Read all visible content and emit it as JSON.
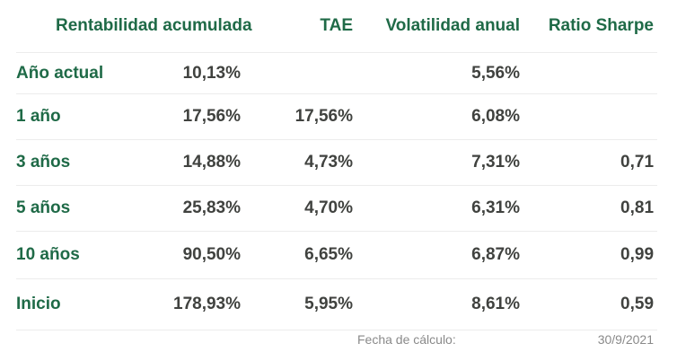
{
  "table": {
    "headers": [
      "Rentabilidad acumulada",
      "TAE",
      "Volatilidad anual",
      "Ratio Sharpe"
    ],
    "rows": [
      {
        "label": "Año actual",
        "rentabilidad": "10,13%",
        "tae": "",
        "volatilidad": "5,56%",
        "sharpe": ""
      },
      {
        "label": "1 año",
        "rentabilidad": "17,56%",
        "tae": "17,56%",
        "volatilidad": "6,08%",
        "sharpe": ""
      },
      {
        "label": "3 años",
        "rentabilidad": "14,88%",
        "tae": "4,73%",
        "volatilidad": "7,31%",
        "sharpe": "0,71"
      },
      {
        "label": "5 años",
        "rentabilidad": "25,83%",
        "tae": "4,70%",
        "volatilidad": "6,31%",
        "sharpe": "0,81"
      },
      {
        "label": "10 años",
        "rentabilidad": "90,50%",
        "tae": "6,65%",
        "volatilidad": "6,87%",
        "sharpe": "0,99"
      },
      {
        "label": "Inicio",
        "rentabilidad": "178,93%",
        "tae": "5,95%",
        "volatilidad": "8,61%",
        "sharpe": "0,59"
      }
    ]
  },
  "footer": {
    "date_label": "Fecha de cálculo:",
    "date_value": "30/9/2021"
  },
  "colors": {
    "accent": "#1f6a47",
    "text": "#40423f",
    "muted": "#8a8a8a",
    "divider": "#ececec"
  }
}
